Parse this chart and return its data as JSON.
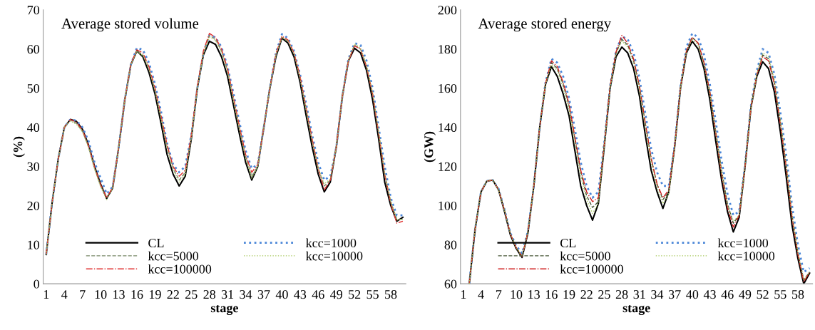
{
  "chart_data": [
    {
      "type": "line",
      "title": "Average stored volume",
      "xlabel": "stage",
      "ylabel": "(%)",
      "categories": [
        "1",
        null,
        null,
        "4",
        null,
        null,
        "7",
        null,
        null,
        "10",
        null,
        null,
        "13",
        null,
        null,
        "16",
        null,
        null,
        "19",
        null,
        null,
        "22",
        null,
        null,
        "25",
        null,
        null,
        "28",
        null,
        null,
        "31",
        null,
        null,
        "34",
        null,
        null,
        "37",
        null,
        null,
        "40",
        null,
        null,
        "43",
        null,
        null,
        "46",
        null,
        null,
        "49",
        null,
        null,
        "52",
        null,
        null,
        "55",
        null,
        null,
        "58",
        null,
        null
      ],
      "ylim": [
        0,
        70
      ],
      "yticks": [
        0,
        10,
        20,
        30,
        40,
        50,
        60,
        70
      ],
      "grid": false,
      "legend": "bottom",
      "marker": "none",
      "series": [
        {
          "name": "CL",
          "color": "#000000",
          "line_style": "solid",
          "values": [
            7.5,
            21,
            32,
            40,
            42,
            41.5,
            39.5,
            35.5,
            30,
            25.5,
            21.8,
            24.5,
            35,
            47,
            56,
            59.5,
            58,
            54,
            48.5,
            41,
            33,
            28,
            25,
            27.5,
            37,
            50,
            58.5,
            62,
            61.2,
            58,
            53,
            45.5,
            38,
            31,
            26.5,
            30,
            40,
            50,
            58,
            62.8,
            61.5,
            58,
            51.5,
            43,
            35,
            28,
            23.5,
            26,
            35,
            48,
            57,
            60.2,
            59,
            54.5,
            47,
            37,
            26,
            20,
            16,
            17
          ]
        },
        {
          "name": "kcc=1000",
          "color": "#4a86d8",
          "line_style": "dotted",
          "values": [
            7.5,
            21,
            32,
            40,
            42,
            41.7,
            40,
            36.5,
            31,
            27,
            23,
            24.8,
            35,
            47,
            56,
            60.3,
            59.8,
            56.5,
            51,
            44,
            36,
            30.5,
            28.5,
            30,
            38,
            50,
            59,
            63.5,
            63,
            60.5,
            55.5,
            48.5,
            41,
            34,
            29.5,
            30.5,
            40,
            50,
            59,
            63.8,
            62.8,
            59.5,
            53.5,
            46,
            38,
            31,
            26.5,
            27.5,
            35,
            48,
            57.5,
            61.5,
            61,
            57,
            50,
            40,
            30,
            22,
            17.5,
            17.5
          ]
        },
        {
          "name": "kcc=5000",
          "color": "#7a8a6a",
          "line_style": "dashed",
          "values": [
            7.5,
            21,
            32,
            40,
            41.8,
            41,
            39,
            35,
            29.5,
            25,
            22,
            24.6,
            35,
            47,
            56,
            59.5,
            58.5,
            55,
            49.5,
            42.5,
            35,
            29.5,
            26.5,
            28.5,
            37.5,
            50,
            59,
            63.5,
            62.5,
            59.5,
            54.5,
            47,
            39.5,
            32.5,
            27.5,
            30,
            40,
            50,
            58.5,
            63,
            62,
            58.8,
            52.5,
            44.5,
            36.5,
            29.5,
            25,
            26.5,
            35,
            48,
            57,
            61,
            60,
            55.5,
            48.5,
            38.5,
            28,
            21,
            16.5,
            16.5
          ]
        },
        {
          "name": "kcc=10000",
          "color": "#a9c95f",
          "line_style": "dotted",
          "values": [
            7.5,
            21,
            32,
            40,
            41.6,
            40.8,
            38.8,
            34.8,
            29.3,
            24.8,
            21.5,
            24.4,
            35,
            47,
            56,
            59.3,
            58.3,
            54.8,
            49.3,
            42.3,
            34.5,
            29,
            26,
            28,
            37.2,
            50,
            58.8,
            63,
            62.2,
            59.2,
            54.2,
            46.7,
            39.2,
            32,
            27,
            30,
            40,
            50,
            58.5,
            63,
            62,
            58.8,
            52.5,
            44.5,
            36.5,
            29.5,
            25.5,
            26.8,
            35,
            48,
            57.2,
            61.3,
            60.3,
            55.8,
            48.8,
            38.8,
            28.3,
            21,
            16.3,
            16.5
          ]
        },
        {
          "name": "kcc=100000",
          "color": "#e03030",
          "line_style": "dashdot",
          "values": [
            7.5,
            21,
            32,
            40,
            42,
            41.3,
            39.3,
            35.3,
            29.8,
            25.3,
            22,
            24.6,
            35,
            47,
            56.2,
            59.8,
            59,
            55.5,
            50,
            43,
            35.5,
            30,
            27.5,
            29,
            38,
            50.5,
            59.5,
            64,
            63,
            60,
            55,
            47.5,
            40,
            33,
            28.5,
            30.5,
            40,
            50,
            58.8,
            63.3,
            62.3,
            59,
            53,
            45,
            37,
            29.5,
            24,
            26.5,
            35,
            48,
            57,
            60.8,
            60,
            55.5,
            48.5,
            38.5,
            28,
            20.5,
            15.5,
            16
          ]
        }
      ]
    },
    {
      "type": "line",
      "title": "Average stored energy",
      "xlabel": "stage",
      "ylabel": "(GW)",
      "categories": [
        "1",
        null,
        null,
        "4",
        null,
        null,
        "7",
        null,
        null,
        "10",
        null,
        null,
        "13",
        null,
        null,
        "16",
        null,
        null,
        "19",
        null,
        null,
        "22",
        null,
        null,
        "25",
        null,
        null,
        "28",
        null,
        null,
        "31",
        null,
        null,
        "34",
        null,
        null,
        "37",
        null,
        null,
        "40",
        null,
        null,
        "43",
        null,
        null,
        "46",
        null,
        null,
        "49",
        null,
        null,
        "52",
        null,
        null,
        "55",
        null,
        null,
        "58",
        null,
        null
      ],
      "ylim": [
        60,
        200
      ],
      "yticks": [
        60,
        80,
        100,
        120,
        140,
        160,
        180,
        200
      ],
      "grid": false,
      "legend": "bottom",
      "marker": "none",
      "series": [
        {
          "name": "CL",
          "color": "#000000",
          "line_style": "solid",
          "values": [
            null,
            60,
            88,
            107,
            112.5,
            113,
            108,
            97,
            85,
            78,
            73.5,
            86,
            110,
            140,
            162,
            171,
            166,
            157,
            146,
            128,
            110,
            100,
            92.5,
            101,
            130,
            160,
            176,
            181,
            178,
            170,
            156,
            136,
            118,
            107,
            98.5,
            107,
            130,
            160,
            178,
            184,
            180,
            170,
            154,
            133,
            113,
            97,
            86.5,
            94,
            120,
            150,
            166,
            173.5,
            170,
            158,
            138,
            115,
            90,
            73,
            60,
            65.5
          ]
        },
        {
          "name": "kcc=1000",
          "color": "#4a86d8",
          "line_style": "dotted",
          "values": [
            null,
            60,
            88,
            107,
            112.5,
            113,
            108.5,
            98,
            86,
            79.5,
            75.5,
            87,
            110,
            140,
            163,
            175,
            173,
            166,
            155,
            139,
            122,
            110,
            104,
            107,
            132,
            161,
            179,
            186.5,
            185,
            178,
            165,
            147,
            129,
            117,
            110,
            110,
            131,
            161,
            181,
            188,
            186,
            177,
            162,
            143,
            123,
            106,
            95,
            97,
            121,
            151,
            169,
            180,
            178,
            167,
            148,
            126,
            100,
            80,
            66,
            68
          ]
        },
        {
          "name": "kcc=5000",
          "color": "#4a5a3a",
          "line_style": "dashed",
          "values": [
            null,
            60,
            88,
            107,
            112.5,
            113,
            108,
            97.5,
            85.5,
            78.5,
            74,
            86.5,
            110,
            140,
            162.5,
            173,
            170,
            162,
            151,
            134,
            117,
            105,
            99,
            102,
            131,
            160.5,
            178,
            185,
            182,
            174,
            161,
            142,
            124,
            111,
            103,
            107,
            130,
            160.5,
            179,
            186,
            183,
            173,
            158,
            138,
            118,
            101,
            91,
            95,
            120,
            150,
            167,
            177,
            175,
            163,
            143,
            121,
            95,
            76,
            62,
            66
          ]
        },
        {
          "name": "kcc=10000",
          "color": "#a9c95f",
          "line_style": "dotted",
          "values": [
            null,
            60,
            88,
            107,
            112.5,
            113,
            108,
            97.5,
            85.5,
            78.5,
            74,
            86.5,
            110,
            140,
            162,
            172,
            169,
            160,
            149,
            132,
            115,
            103,
            96,
            101,
            130.5,
            160,
            177,
            184,
            181,
            173,
            159,
            140,
            122,
            109,
            101,
            106,
            130,
            160,
            178.5,
            185,
            182,
            172,
            157,
            137,
            117,
            100,
            92,
            95,
            120,
            150,
            167,
            178,
            176,
            164,
            144,
            121,
            95,
            76,
            62,
            66
          ]
        },
        {
          "name": "kcc=100000",
          "color": "#d02020",
          "line_style": "dashdot",
          "values": [
            null,
            60,
            88,
            107,
            112.5,
            113,
            108,
            97.5,
            85.5,
            78.5,
            74,
            86.5,
            110,
            140,
            162.5,
            174,
            171,
            163,
            152,
            135,
            118,
            107,
            102,
            104,
            131,
            161,
            178.5,
            187,
            183,
            175,
            161,
            142,
            124,
            111,
            104,
            108,
            130.5,
            160.5,
            179,
            186,
            183,
            173,
            158,
            137,
            116,
            99,
            89,
            95,
            120,
            150,
            167,
            176,
            174,
            162,
            142,
            120,
            94,
            75,
            61,
            66
          ]
        }
      ]
    }
  ]
}
